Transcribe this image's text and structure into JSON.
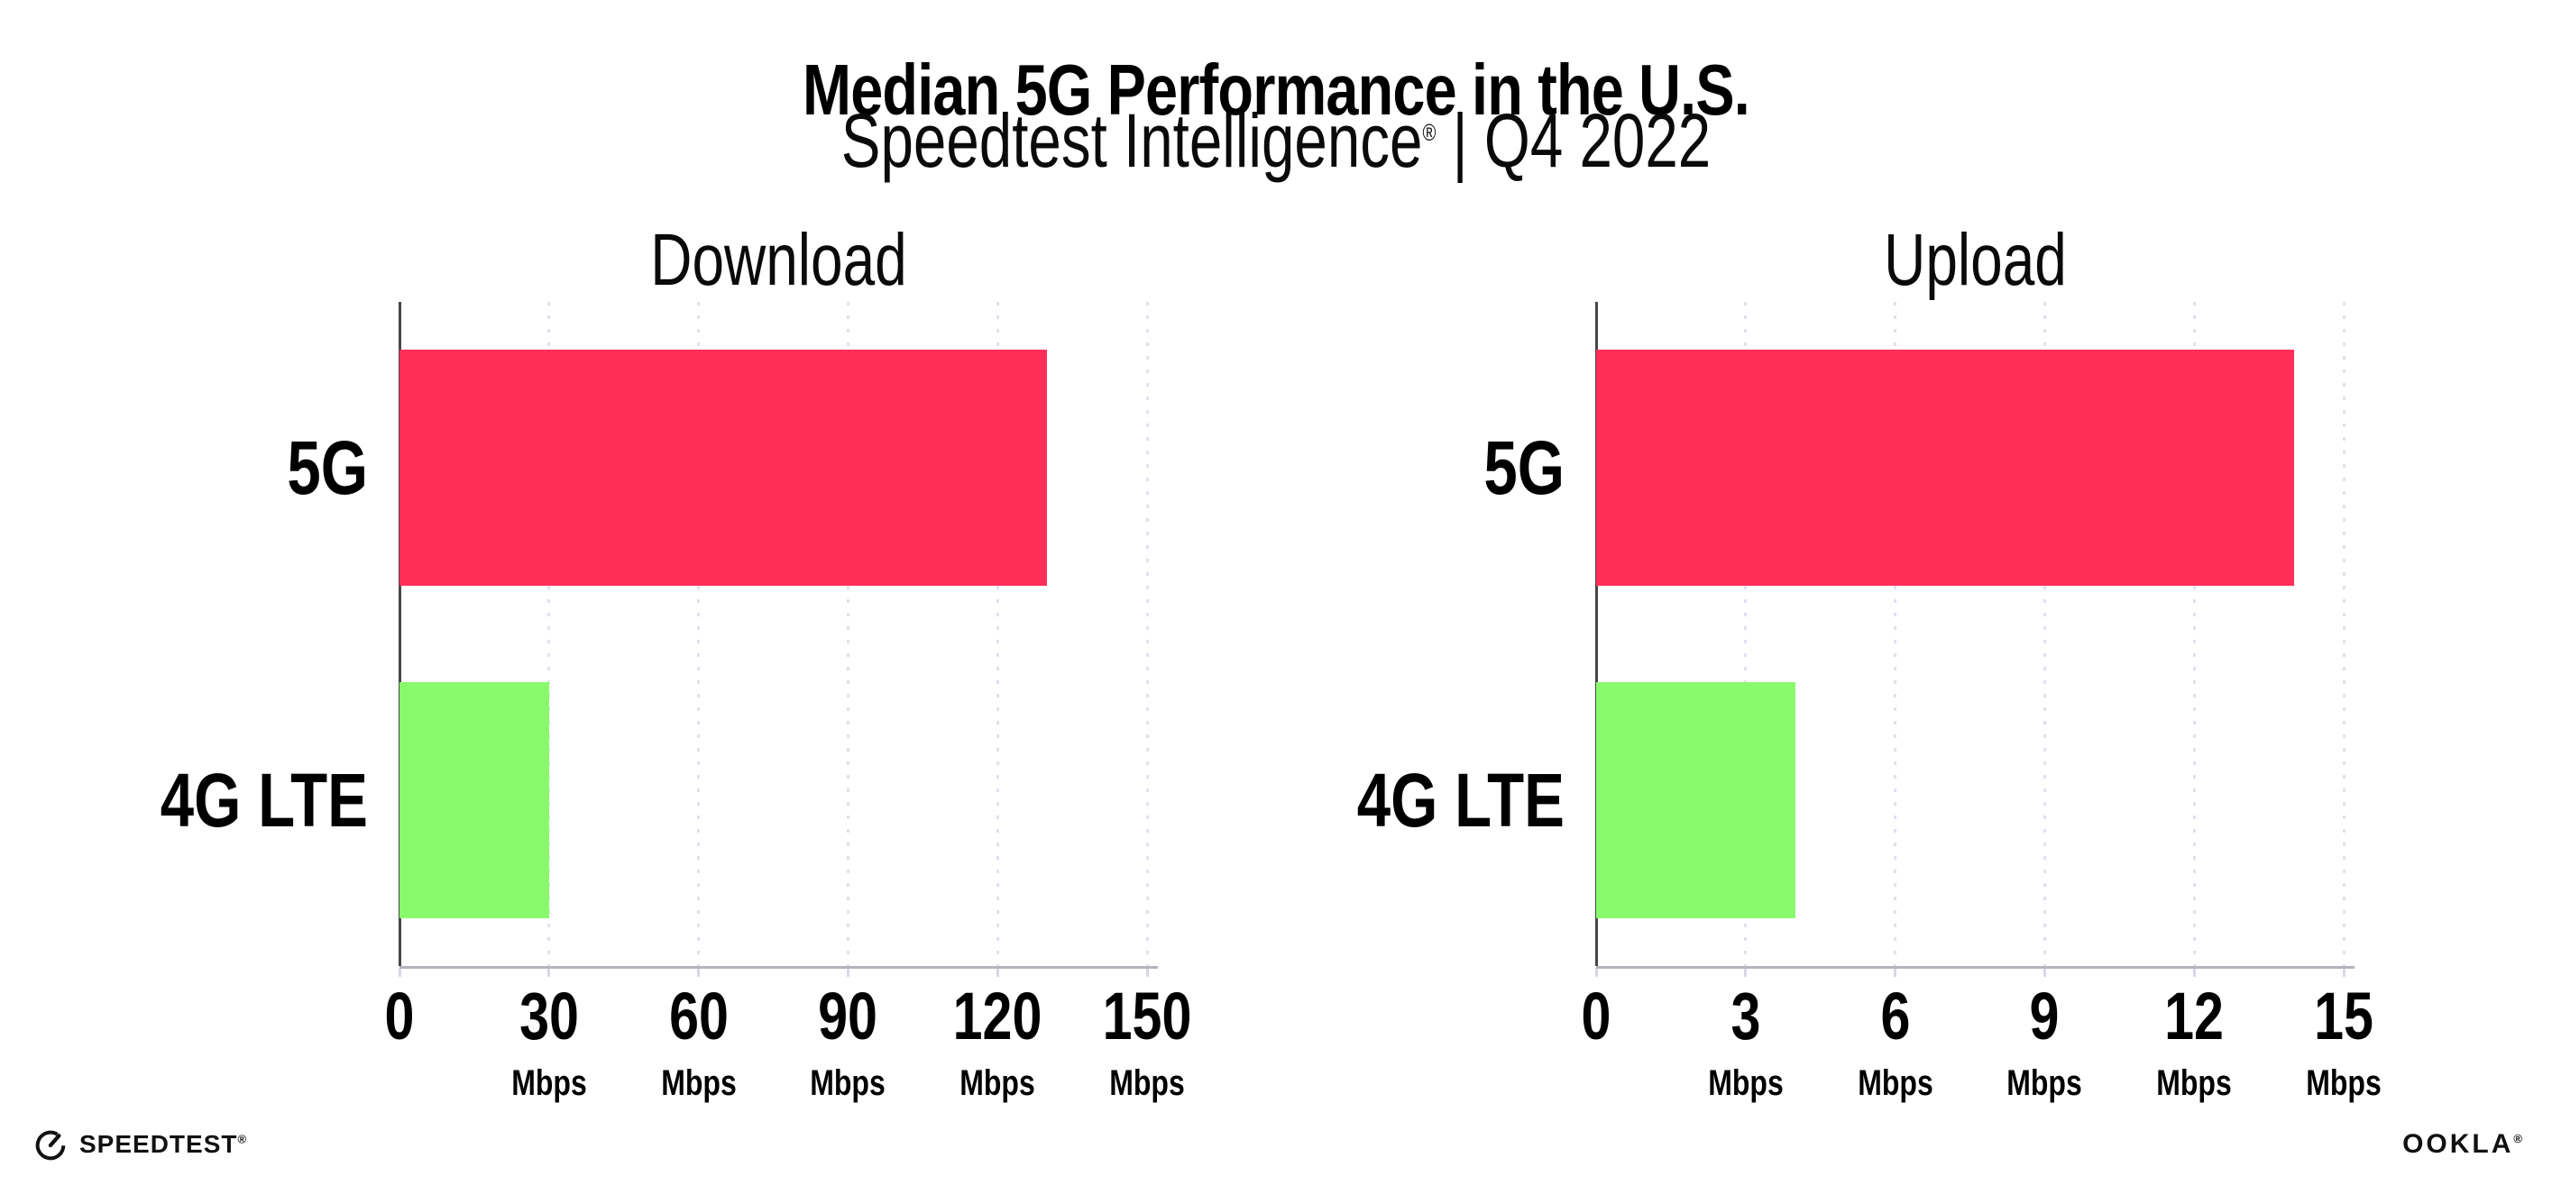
{
  "title": "Median 5G Performance in the U.S.",
  "subtitle": {
    "brand": "Speedtest Intelligence",
    "reg": "®",
    "separator": " | ",
    "period": "Q4 2022"
  },
  "chart_data": [
    {
      "type": "bar",
      "orientation": "horizontal",
      "title": "Download",
      "categories": [
        "5G",
        "4G LTE"
      ],
      "values": [
        130,
        30
      ],
      "unit": "Mbps",
      "xlabel": "Mbps",
      "ylabel": "",
      "xlim": [
        0,
        150
      ],
      "xticks": [
        0,
        30,
        60,
        90,
        120,
        150
      ],
      "bar_colors": [
        "#ff2e59",
        "#88fa6c"
      ],
      "grid": "dotted-vertical",
      "legend": "none"
    },
    {
      "type": "bar",
      "orientation": "horizontal",
      "title": "Upload",
      "categories": [
        "5G",
        "4G LTE"
      ],
      "values": [
        14,
        4
      ],
      "unit": "Mbps",
      "xlabel": "Mbps",
      "ylabel": "",
      "xlim": [
        0,
        15
      ],
      "xticks": [
        0,
        3,
        6,
        9,
        12,
        15
      ],
      "bar_colors": [
        "#ff2e59",
        "#88fa6c"
      ],
      "grid": "dotted-vertical",
      "legend": "none"
    }
  ],
  "colors": {
    "bar_5g": "#ff2e59",
    "bar_4g_lte": "#88fa6c",
    "gridline": "#e0e1ee",
    "axis": "#474747",
    "baseline": "#b4b4bc",
    "tick_stub": "#d7d8e6",
    "background": "#ffffff",
    "text": "#000000"
  },
  "footer": {
    "speedtest": {
      "icon": "speedtest-gauge-icon",
      "label": "SPEEDTEST",
      "mark": "®"
    },
    "ookla": {
      "label": "OOKLA",
      "mark": "®"
    }
  }
}
